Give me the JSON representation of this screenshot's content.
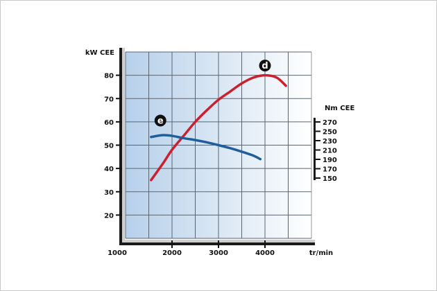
{
  "chart_data": {
    "type": "line",
    "title": "",
    "xlabel": "tr/min",
    "ylabel": "kW CEE",
    "y2label": "Nm CEE",
    "xlim": [
      1000,
      5000
    ],
    "ylim": [
      10,
      90
    ],
    "x_ticks": [
      1000,
      2000,
      3000,
      4000
    ],
    "x_tick_labels": [
      "1000",
      "2000",
      "3000",
      "4000"
    ],
    "y_ticks": [
      20,
      30,
      40,
      50,
      60,
      70,
      80
    ],
    "y_tick_labels": [
      "20",
      "30",
      "40",
      "50",
      "60",
      "70",
      "80"
    ],
    "y2_ticks": [
      270,
      250,
      230,
      210,
      190,
      170,
      150
    ],
    "y2_tick_labels": [
      "270",
      "250",
      "230",
      "210",
      "190",
      "170",
      "150"
    ],
    "grid": true,
    "series": [
      {
        "name": "d",
        "label": "d",
        "axis": "kW CEE",
        "color": "#cc1f2e",
        "x": [
          1550,
          1800,
          2000,
          2250,
          2500,
          2750,
          3000,
          3250,
          3500,
          3750,
          4000,
          4250,
          4450
        ],
        "y": [
          35,
          42,
          48,
          54,
          60,
          65,
          69.5,
          73,
          76.5,
          79,
          80,
          79,
          75.5
        ]
      },
      {
        "name": "e",
        "label": "e",
        "axis": "Nm CEE",
        "color": "#1f5e9c",
        "x": [
          1550,
          1800,
          2000,
          2250,
          2500,
          2750,
          3000,
          3250,
          3500,
          3750,
          3900
        ],
        "y": [
          53.5,
          54.3,
          54,
          53,
          52.2,
          51.2,
          50,
          48.7,
          47.2,
          45.5,
          44
        ]
      }
    ]
  }
}
